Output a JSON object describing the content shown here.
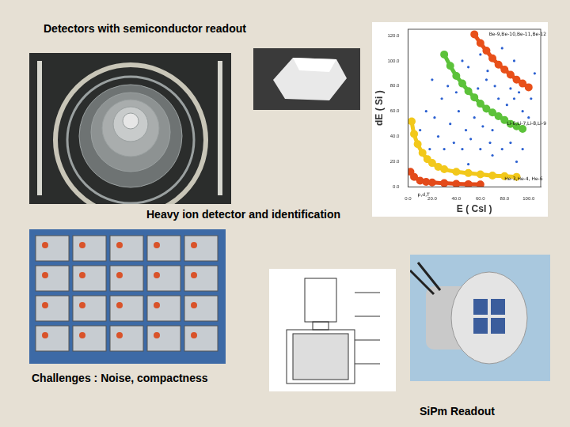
{
  "slide": {
    "title": "Detectors with semiconductor readout",
    "caption_middle": "Heavy ion detector and identification",
    "caption_bottom_left": "Challenges : Noise, compactness",
    "caption_bottom_right": "SiPm Readout"
  },
  "chart_data": {
    "type": "scatter",
    "x_label": "E ( CsI )",
    "y_label": "dE ( Si )",
    "xlim": [
      0,
      110
    ],
    "ylim": [
      0,
      125
    ],
    "xticks": [
      {
        "value": 0,
        "label": "0.0"
      },
      {
        "value": 20,
        "label": "20.0"
      },
      {
        "value": 40,
        "label": "40.0"
      },
      {
        "value": 60,
        "label": "60.0"
      },
      {
        "value": 80,
        "label": "80.0"
      },
      {
        "value": 100,
        "label": "100.0"
      }
    ],
    "yticks": [
      {
        "value": 0,
        "label": "0.0"
      },
      {
        "value": 20,
        "label": "20.0"
      },
      {
        "value": 40,
        "label": "40.0"
      },
      {
        "value": 60,
        "label": "60.0"
      },
      {
        "value": 80,
        "label": "80.0"
      },
      {
        "value": 100,
        "label": "100.0"
      },
      {
        "value": 120,
        "label": "120.0"
      }
    ],
    "grid": false,
    "series": [
      {
        "color": "#2a5fd0",
        "marker": "circle",
        "line_style": "none",
        "x": [
          15,
          22,
          28,
          35,
          42,
          48,
          55,
          62,
          70,
          75,
          82,
          88,
          95,
          100,
          45,
          50,
          65,
          72,
          85,
          92,
          40,
          33,
          25,
          30,
          38,
          45,
          52,
          60,
          68,
          78,
          85,
          95,
          18,
          10,
          58,
          66,
          78,
          88,
          102,
          105,
          20,
          60,
          70,
          90,
          50
        ],
        "y": [
          60,
          55,
          70,
          50,
          60,
          45,
          55,
          48,
          45,
          70,
          65,
          70,
          60,
          55,
          100,
          95,
          85,
          80,
          78,
          75,
          75,
          80,
          40,
          30,
          35,
          30,
          38,
          30,
          35,
          30,
          35,
          30,
          30,
          45,
          78,
          92,
          110,
          100,
          70,
          90,
          85,
          105,
          25,
          20,
          18
        ]
      },
      {
        "color": "#e8501a",
        "marker": "circle",
        "line_style": "solid",
        "x": [
          55,
          60,
          65,
          70,
          75,
          80,
          85,
          90,
          95,
          100
        ],
        "y": [
          121,
          114,
          108,
          102,
          97,
          93,
          89,
          85,
          82,
          79
        ]
      },
      {
        "color": "#5cc23a",
        "marker": "circle",
        "line_style": "solid",
        "x": [
          30,
          35,
          40,
          45,
          50,
          55,
          60,
          65,
          70,
          75,
          80,
          85,
          90,
          95
        ],
        "y": [
          105,
          96,
          88,
          82,
          76,
          71,
          66,
          62,
          59,
          56,
          53,
          50,
          48,
          46
        ]
      },
      {
        "color": "#f2c81b",
        "marker": "circle",
        "line_style": "solid",
        "x": [
          3,
          5,
          8,
          12,
          16,
          20,
          25,
          30,
          40,
          50,
          60,
          70,
          80,
          90
        ],
        "y": [
          52,
          42,
          34,
          27,
          22,
          19,
          16,
          14,
          12,
          11,
          10,
          9,
          8.5,
          8
        ]
      },
      {
        "color": "#e34a1a",
        "marker": "circle",
        "line_style": "solid",
        "x": [
          2,
          5,
          10,
          15,
          20,
          30,
          40,
          50,
          60
        ],
        "y": [
          12,
          8,
          5,
          4,
          3.5,
          3,
          2.5,
          2.2,
          2
        ]
      }
    ],
    "annotations": [
      {
        "text": "Be-9,Be-10,Be-11,Be-12",
        "x": 84,
        "y": 121
      },
      {
        "text": "Li-6,Li-7,Li-8,Li-9",
        "x": 84,
        "y": 50
      },
      {
        "text": "He-3,He-4, He-6",
        "x": 80,
        "y": 6
      },
      {
        "text": "p,d,T",
        "x": 8,
        "y": -6
      }
    ]
  }
}
